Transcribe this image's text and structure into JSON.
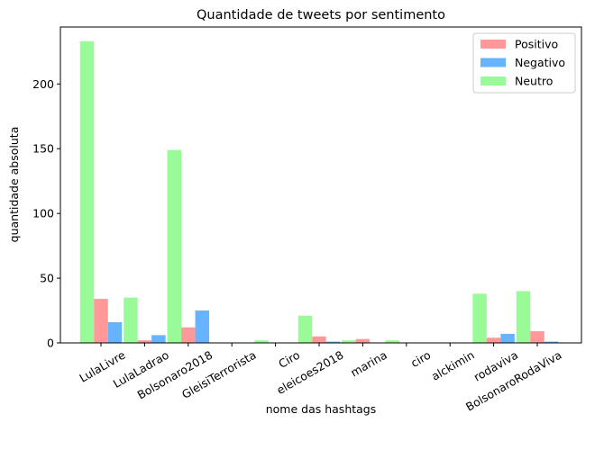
{
  "chart_data": {
    "type": "bar",
    "title": "Quantidade de tweets por sentimento",
    "xlabel": "nome das hashtags",
    "ylabel": "quantidade absoluta",
    "categories": [
      "LulaLivre",
      "LulaLadrao",
      "Bolsonaro2018",
      "GleisiTerrorista",
      "Ciro",
      "eleicoes2018",
      "marina",
      "ciro",
      "alckimin",
      "rodaviva",
      "BolsonaroRodaViva"
    ],
    "series": [
      {
        "name": "Neutro",
        "color": "#98fb98",
        "values": [
          233,
          35,
          149,
          0,
          2,
          21,
          2,
          2,
          0,
          38,
          40
        ]
      },
      {
        "name": "Positivo",
        "color": "#ff9999",
        "values": [
          34,
          2,
          12,
          0,
          0,
          5,
          3,
          0,
          0,
          4,
          9
        ]
      },
      {
        "name": "Negativo",
        "color": "#66b3ff",
        "values": [
          16,
          6,
          25,
          0,
          0,
          1,
          0,
          0,
          0,
          7,
          1
        ]
      }
    ],
    "legend_order": [
      "Positivo",
      "Negativo",
      "Neutro"
    ],
    "ylim": [
      0,
      244
    ],
    "yticks": [
      0,
      50,
      100,
      150,
      200
    ],
    "grid": false,
    "legend_position": "top-right"
  }
}
